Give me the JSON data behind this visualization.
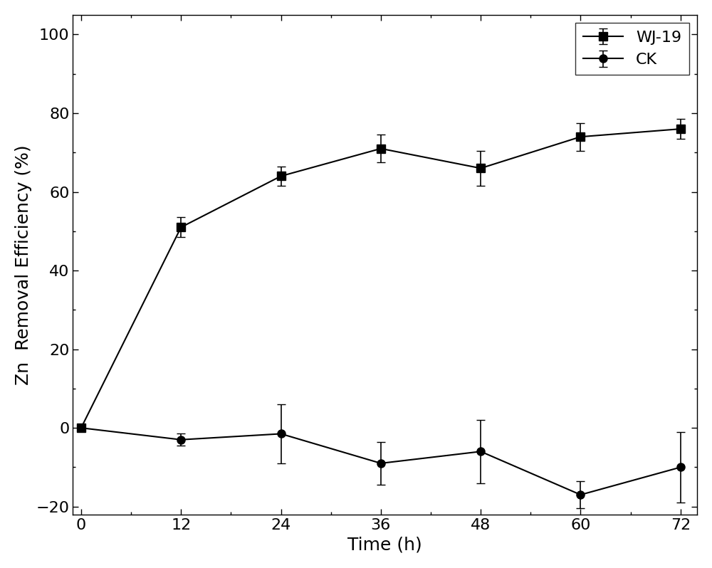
{
  "time": [
    0,
    12,
    24,
    36,
    48,
    60,
    72
  ],
  "wj19_y": [
    0,
    51,
    64,
    71,
    66,
    74,
    76
  ],
  "wj19_err": [
    0.5,
    2.5,
    2.5,
    3.5,
    4.5,
    3.5,
    2.5
  ],
  "ck_y": [
    0,
    -3,
    -1.5,
    -9,
    -6,
    -17,
    -10
  ],
  "ck_err": [
    0.5,
    1.5,
    7.5,
    5.5,
    8.0,
    3.5,
    9.0
  ],
  "xlabel": "Time (h)",
  "ylabel": "Zn  Removal Efficiency (%)",
  "legend_wj19": "WJ-19",
  "legend_ck": "CK",
  "xlim": [
    -1,
    74
  ],
  "ylim": [
    -22,
    105
  ],
  "xticks": [
    0,
    12,
    24,
    36,
    48,
    60,
    72
  ],
  "yticks": [
    -20,
    0,
    20,
    40,
    60,
    80,
    100
  ],
  "color": "#000000",
  "linewidth": 1.5,
  "markersize": 8,
  "capsize": 4,
  "legend_fontsize": 16,
  "axis_label_fontsize": 18,
  "tick_fontsize": 16
}
